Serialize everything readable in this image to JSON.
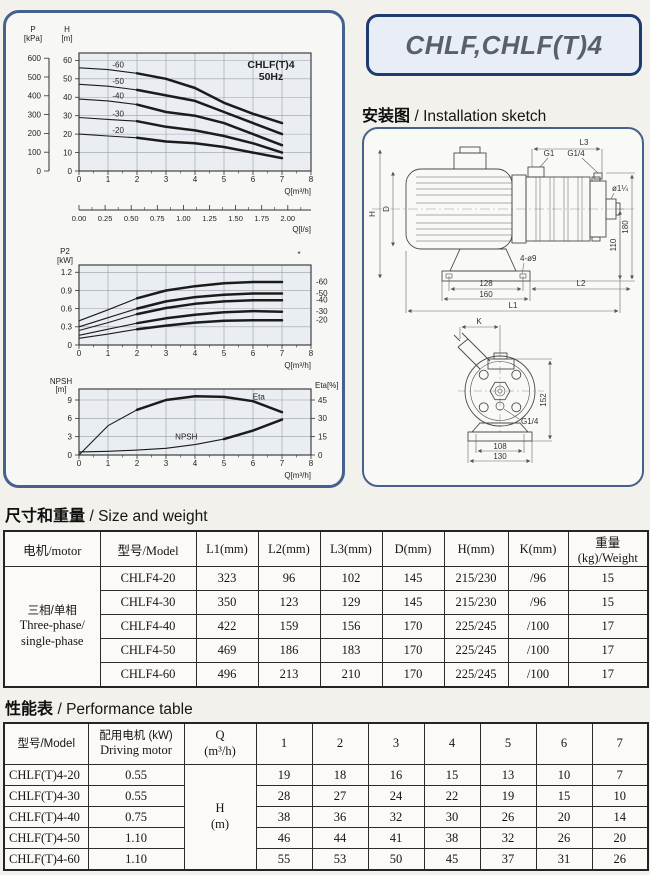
{
  "title_box": {
    "label": "CHLF,CHLF(T)4"
  },
  "install_section": {
    "zh": "安装图",
    "en": "/ Installation sketch"
  },
  "size_section": {
    "zh": "尺寸和重量",
    "en": "/ Size and weight"
  },
  "perf_section": {
    "zh": "性能表",
    "en": "/ Performance table"
  },
  "sketch": {
    "side": {
      "l3": "L3",
      "g1": "G1",
      "g14": "G1/4",
      "port": "ø1¼",
      "d180": "180",
      "d110": "110",
      "h": "H",
      "d": "D",
      "holes": "4-ø9",
      "d128": "128",
      "d160": "160",
      "l2": "L2",
      "l1": "L1"
    },
    "front": {
      "k": "K",
      "d152": "152",
      "g14": "G1/4",
      "d108": "108",
      "d130": "130"
    }
  },
  "size_table": {
    "headers": [
      "电机/motor",
      "型号/Model",
      "L1(mm)",
      "L2(mm)",
      "L3(mm)",
      "D(mm)",
      "H(mm)",
      "K(mm)",
      "重量(kg)/Weight"
    ],
    "motor_group": [
      "三相/单相",
      "Three-phase/",
      "single-phase"
    ],
    "rows": [
      [
        "CHLF4-20",
        "323",
        "96",
        "102",
        "145",
        "215/230",
        "/96",
        "15"
      ],
      [
        "CHLF4-30",
        "350",
        "123",
        "129",
        "145",
        "215/230",
        "/96",
        "15"
      ],
      [
        "CHLF4-40",
        "422",
        "159",
        "156",
        "170",
        "225/245",
        "/100",
        "17"
      ],
      [
        "CHLF4-50",
        "469",
        "186",
        "183",
        "170",
        "225/245",
        "/100",
        "17"
      ],
      [
        "CHLF4-60",
        "496",
        "213",
        "210",
        "170",
        "225/245",
        "/100",
        "17"
      ]
    ]
  },
  "perf_table": {
    "model_header": "型号/Model",
    "motor_header": [
      "配用电机 (kW)",
      "Driving motor"
    ],
    "q_header": [
      "Q",
      "(m³/h)"
    ],
    "flow_cols": [
      "1",
      "2",
      "3",
      "4",
      "5",
      "6",
      "7"
    ],
    "h_cell": [
      "H",
      "(m)"
    ],
    "rows": [
      {
        "model": "CHLF(T)4-20",
        "power": "0.55",
        "values": [
          "19",
          "18",
          "16",
          "15",
          "13",
          "10",
          "7"
        ]
      },
      {
        "model": "CHLF(T)4-30",
        "power": "0.55",
        "values": [
          "28",
          "27",
          "24",
          "22",
          "19",
          "15",
          "10"
        ]
      },
      {
        "model": "CHLF(T)4-40",
        "power": "0.75",
        "values": [
          "38",
          "36",
          "32",
          "30",
          "26",
          "20",
          "14"
        ]
      },
      {
        "model": "CHLF(T)4-50",
        "power": "1.10",
        "values": [
          "46",
          "44",
          "41",
          "38",
          "32",
          "26",
          "20"
        ]
      },
      {
        "model": "CHLF(T)4-60",
        "power": "1.10",
        "values": [
          "55",
          "53",
          "50",
          "45",
          "37",
          "31",
          "26"
        ]
      }
    ]
  },
  "chart_data": [
    {
      "id": "hq",
      "type": "line",
      "title_lines": [
        "CHLF(T)4",
        "50Hz"
      ],
      "xlabel": "Q[m³/h]",
      "xlim": [
        0,
        8
      ],
      "xticks": [
        0,
        1,
        2,
        3,
        4,
        5,
        6,
        7,
        8
      ],
      "x": [
        0,
        1,
        2,
        3,
        4,
        5,
        6,
        7
      ],
      "left_axis": {
        "label": [
          "H",
          "[m]"
        ],
        "ticks": [
          0,
          10,
          20,
          30,
          40,
          50,
          60
        ],
        "lim": [
          0,
          64
        ]
      },
      "p_axis": {
        "label": [
          "P",
          "[kPa]"
        ],
        "ticks": [
          0,
          100,
          200,
          300,
          400,
          500,
          600
        ]
      },
      "secondary_axis": {
        "label": "Q[l/s]",
        "tick_labels": [
          "0.00",
          "0.25",
          "0.50",
          "0.75",
          "1.00",
          "1.25",
          "1.50",
          "1.75",
          "2.00"
        ],
        "step_lps": 0.25,
        "lps_to_m3h": 3.6
      },
      "label_x": 1.35,
      "thick_from": 2,
      "series": [
        {
          "name": "-60",
          "values": [
            56,
            55,
            53,
            50,
            45,
            37,
            31,
            26
          ]
        },
        {
          "name": "-50",
          "values": [
            47,
            46,
            44,
            41,
            38,
            32,
            26,
            20
          ]
        },
        {
          "name": "-40",
          "values": [
            39,
            38,
            36,
            32,
            30,
            26,
            20,
            14
          ]
        },
        {
          "name": "-30",
          "values": [
            29,
            28,
            27,
            24,
            22,
            19,
            15,
            10
          ]
        },
        {
          "name": "-20",
          "values": [
            20,
            19,
            18,
            16,
            15,
            13,
            10,
            7
          ]
        }
      ]
    },
    {
      "id": "p2",
      "type": "line",
      "xlabel": "Q[m³/h]",
      "note": "*",
      "xlim": [
        0,
        8
      ],
      "xticks": [
        0,
        1,
        2,
        3,
        4,
        5,
        6,
        7,
        8
      ],
      "x": [
        0,
        1,
        2,
        3,
        4,
        5,
        6,
        7
      ],
      "left_axis": {
        "label": [
          "P2",
          "[kW]"
        ],
        "ticks": [
          0,
          0.3,
          0.6,
          0.9,
          1.2
        ],
        "lim": [
          0,
          1.32
        ]
      },
      "thick_from": 2,
      "series": [
        {
          "name": "-60",
          "values": [
            0.4,
            0.58,
            0.77,
            0.9,
            0.97,
            1.02,
            1.04,
            1.04
          ]
        },
        {
          "name": "-50",
          "values": [
            0.3,
            0.45,
            0.6,
            0.72,
            0.79,
            0.83,
            0.85,
            0.85
          ]
        },
        {
          "name": "-40",
          "values": [
            0.24,
            0.37,
            0.51,
            0.61,
            0.68,
            0.72,
            0.74,
            0.74
          ]
        },
        {
          "name": "-30",
          "values": [
            0.16,
            0.26,
            0.36,
            0.44,
            0.5,
            0.54,
            0.56,
            0.55
          ]
        },
        {
          "name": "-20",
          "values": [
            0.11,
            0.18,
            0.26,
            0.32,
            0.37,
            0.4,
            0.41,
            0.41
          ]
        }
      ]
    },
    {
      "id": "npsh",
      "type": "line",
      "xlabel": "Q[m³/h]",
      "xlim": [
        0,
        8
      ],
      "xticks": [
        0,
        1,
        2,
        3,
        4,
        5,
        6,
        7,
        8
      ],
      "x": [
        0,
        1,
        2,
        3,
        4,
        5,
        6,
        7
      ],
      "left_axis": {
        "label": [
          "NPSH",
          "[m]"
        ],
        "ticks": [
          0,
          3,
          6,
          9
        ],
        "lim": [
          0,
          10.8
        ]
      },
      "right_axis": {
        "label": "Eta[%]",
        "ticks": [
          0,
          15,
          30,
          45
        ],
        "lim": [
          0,
          54
        ]
      },
      "series": [
        {
          "name": "Eta",
          "axis": "right",
          "values": [
            0,
            24,
            37,
            45,
            48,
            47.5,
            44,
            35
          ],
          "thick_from": 1.8,
          "label": {
            "x": 6.2,
            "dy": -4
          }
        },
        {
          "name": "NPSH",
          "values": [
            0.5,
            0.6,
            0.8,
            1.1,
            1.7,
            2.6,
            4.0,
            5.8
          ],
          "thick_from": 4.3,
          "label": {
            "x": 3.7,
            "dy": -6
          }
        }
      ]
    }
  ]
}
